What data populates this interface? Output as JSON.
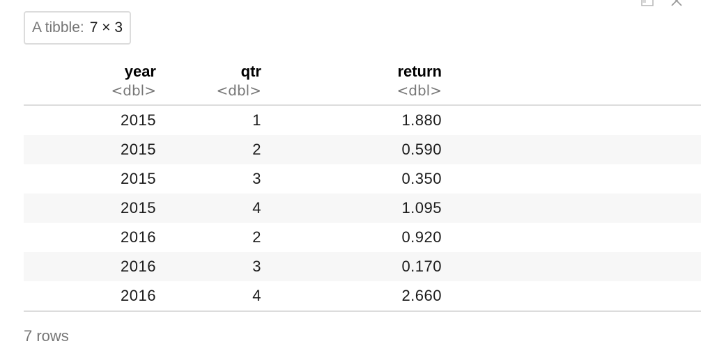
{
  "badge": {
    "label": "A tibble:",
    "dims": "7 × 3"
  },
  "icons": [
    "expand-output-icon",
    "close-icon"
  ],
  "columns": [
    {
      "name": "year",
      "type": "<dbl>"
    },
    {
      "name": "qtr",
      "type": "<dbl>"
    },
    {
      "name": "return",
      "type": "<dbl>"
    }
  ],
  "rows": [
    {
      "year": "2015",
      "qtr": "1",
      "return": "1.880"
    },
    {
      "year": "2015",
      "qtr": "2",
      "return": "0.590"
    },
    {
      "year": "2015",
      "qtr": "3",
      "return": "0.350"
    },
    {
      "year": "2015",
      "qtr": "4",
      "return": "1.095"
    },
    {
      "year": "2016",
      "qtr": "2",
      "return": "0.920"
    },
    {
      "year": "2016",
      "qtr": "3",
      "return": "0.170"
    },
    {
      "year": "2016",
      "qtr": "4",
      "return": "2.660"
    }
  ],
  "footer": {
    "row_count": "7 rows"
  }
}
